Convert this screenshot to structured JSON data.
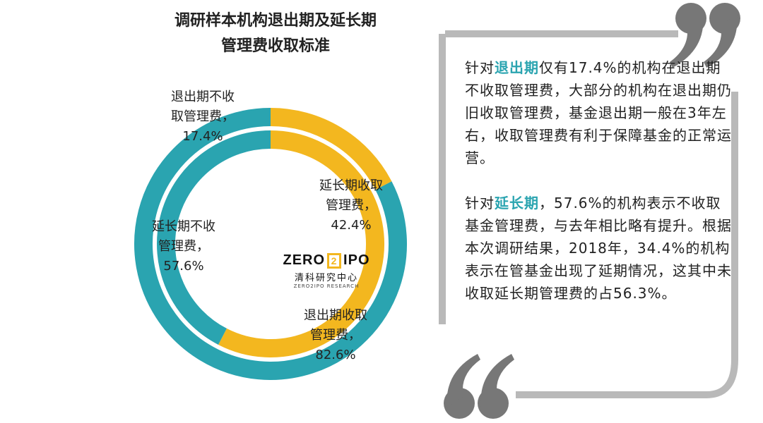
{
  "title": {
    "line1": "调研样本机构退出期及延长期",
    "line2": "管理费收取标准"
  },
  "colors": {
    "teal": "#2aa4b0",
    "yellow": "#f3b71f",
    "gray": "#b9b9b9",
    "quote": "#777777"
  },
  "chart_data": {
    "type": "pie",
    "variant": "double-donut",
    "title": "调研样本机构退出期及延长期管理费收取标准",
    "rings": [
      {
        "name": "退出期",
        "position": "outer",
        "slices": [
          {
            "label": "退出期不收取管理费",
            "value": 17.4,
            "color": "#f3b71f"
          },
          {
            "label": "退出期收取管理费",
            "value": 82.6,
            "color": "#2aa4b0"
          }
        ]
      },
      {
        "name": "延长期",
        "position": "inner",
        "slices": [
          {
            "label": "延长期不收取管理费",
            "value": 57.6,
            "color": "#f3b71f"
          },
          {
            "label": "延长期收取管理费",
            "value": 42.4,
            "color": "#2aa4b0"
          }
        ]
      }
    ]
  },
  "labels": {
    "exit_no": {
      "l1": "退出期不收",
      "l2": "取管理费，",
      "l3": "17.4%"
    },
    "ext_yes": {
      "l1": "延长期收取",
      "l2": "管理费，",
      "l3": "42.4%"
    },
    "ext_no": {
      "l1": "延长期不收",
      "l2": "管理费，",
      "l3": "57.6%"
    },
    "exit_yes": {
      "l1": "退出期收取",
      "l2": "管理费，",
      "l3": "82.6%"
    }
  },
  "logo": {
    "part1": "ZERO",
    "box": "2",
    "part2": "IPO",
    "cn": "清科研究中心",
    "en": "ZERO2IPO RESEARCH"
  },
  "text": {
    "p1_pre": "针对",
    "p1_hl": "退出期",
    "p1_post": "仅有17.4%的机构在退出期不收取管理费，大部分的机构在退出期仍旧收取管理费，基金退出期一般在3年左右，收取管理费有利于保障基金的正常运营。",
    "p2_pre": "针对",
    "p2_hl": "延长期",
    "p2_post": "，57.6%的机构表示不收取基金管理费，与去年相比略有提升。根据本次调研结果，2018年，34.4%的机构表示在管基金出现了延期情况，这其中未收取延长期管理费的占56.3%。"
  }
}
